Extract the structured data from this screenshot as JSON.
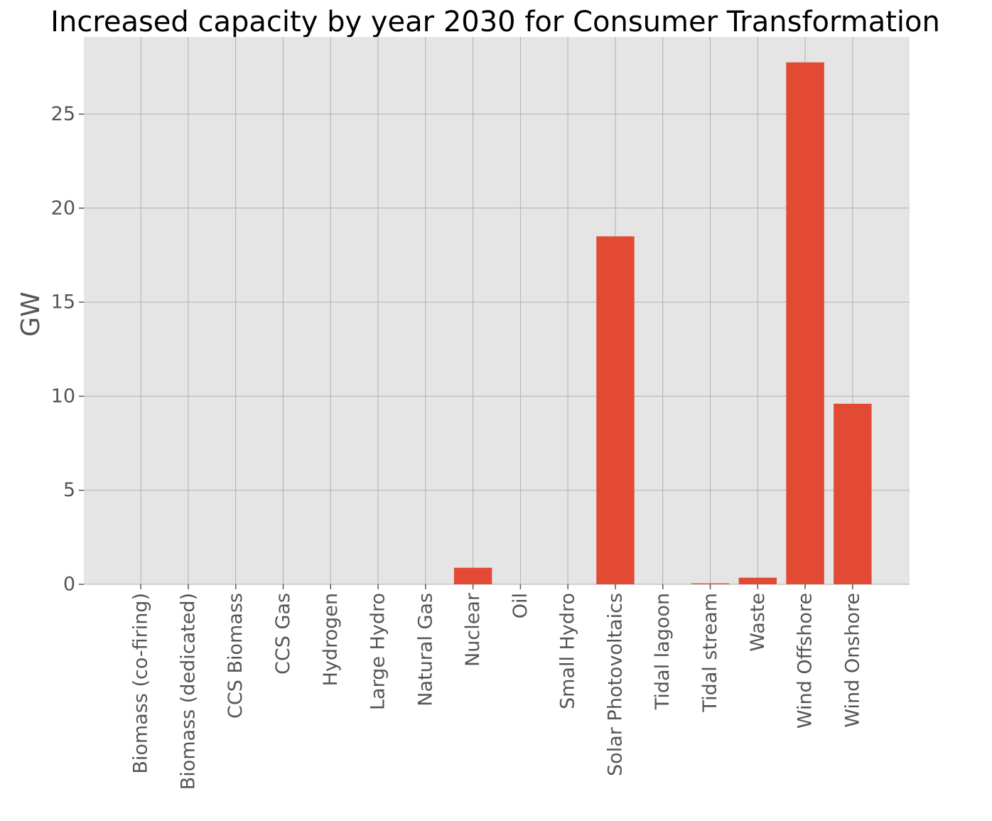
{
  "chart_data": {
    "type": "bar",
    "title": "Increased capacity by year 2030 for Consumer Transformation",
    "xlabel": "",
    "ylabel": "GW",
    "categories": [
      "Biomass (co-firing)",
      "Biomass (dedicated)",
      "CCS Biomass",
      "CCS Gas",
      "Hydrogen",
      "Large Hydro",
      "Natural Gas",
      "Nuclear",
      "Oil",
      "Small Hydro",
      "Solar Photovoltaics",
      "Tidal lagoon",
      "Tidal stream",
      "Waste",
      "Wind Offshore",
      "Wind Onshore"
    ],
    "values": [
      0,
      0,
      0,
      0,
      0,
      0,
      0,
      0.88,
      0,
      0,
      18.5,
      0,
      0.05,
      0.35,
      27.75,
      9.6
    ],
    "yticks": [
      0,
      5,
      10,
      15,
      20,
      25
    ],
    "ytick_labels": [
      "0",
      "5",
      "10",
      "15",
      "20",
      "25"
    ],
    "ylim": [
      0,
      29.1
    ],
    "grid": true,
    "legend": "none",
    "bar_color": "#E24A33",
    "background_color": "#E5E5E5"
  }
}
